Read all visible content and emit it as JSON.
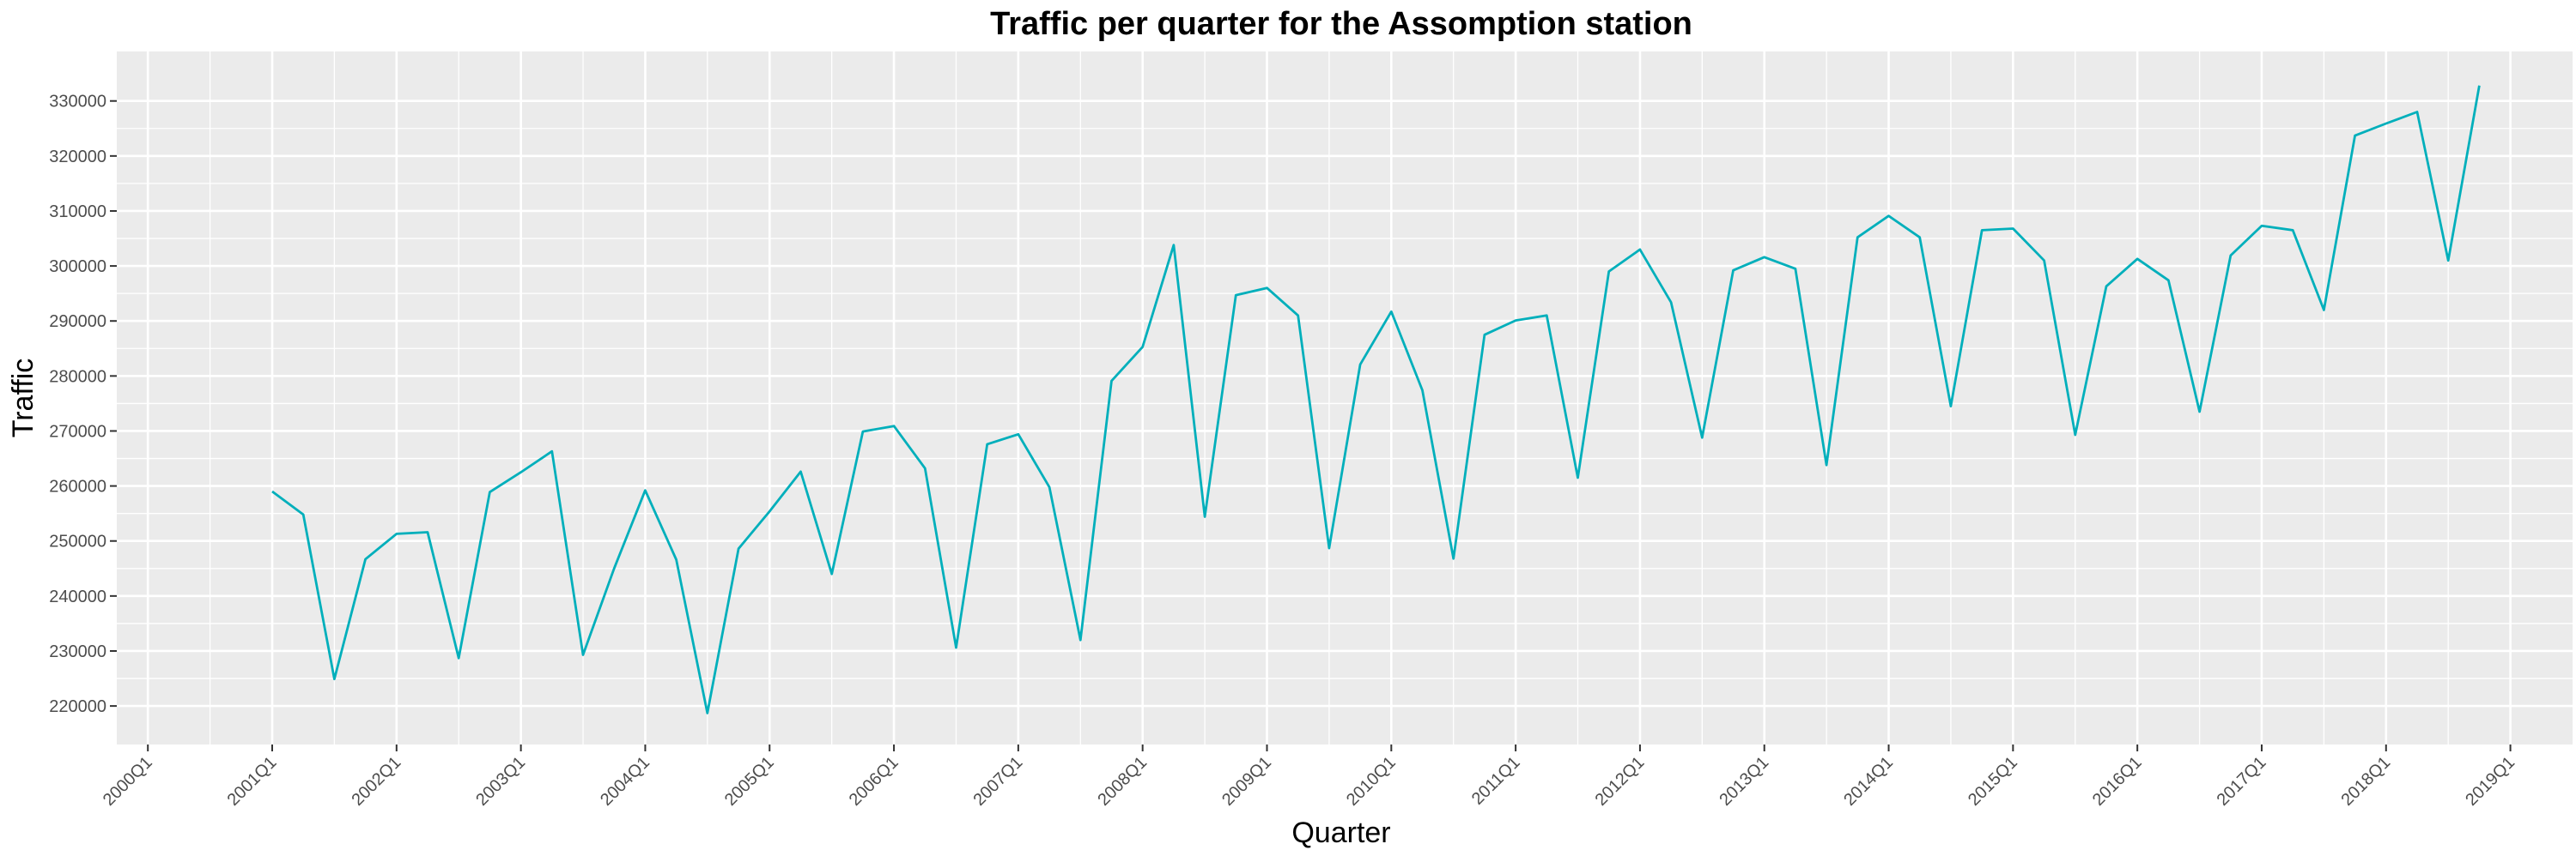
{
  "chart_data": {
    "type": "line",
    "title": "Traffic per quarter for the Assomption station",
    "xlabel": "Quarter",
    "ylabel": "Traffic",
    "x_tick_labels": [
      "2000Q1",
      "2001Q1",
      "2002Q1",
      "2003Q1",
      "2004Q1",
      "2005Q1",
      "2006Q1",
      "2007Q1",
      "2008Q1",
      "2009Q1",
      "2010Q1",
      "2011Q1",
      "2012Q1",
      "2013Q1",
      "2014Q1",
      "2015Q1",
      "2016Q1",
      "2017Q1",
      "2018Q1",
      "2019Q1"
    ],
    "y_tick_labels": [
      "220000",
      "230000",
      "240000",
      "250000",
      "260000",
      "270000",
      "280000",
      "290000",
      "300000",
      "310000",
      "320000",
      "330000"
    ],
    "y_ticks": [
      220000,
      230000,
      240000,
      250000,
      260000,
      270000,
      280000,
      290000,
      300000,
      310000,
      320000,
      330000
    ],
    "xlim": [
      "1999Q4",
      "2019Q3"
    ],
    "ylim": [
      213000,
      339000
    ],
    "grid": true,
    "colors": {
      "series": "#00AFBB",
      "panel": "#EBEBEB",
      "grid": "#FFFFFF"
    },
    "series": [
      {
        "x": [
          "2001Q1",
          "2001Q2",
          "2001Q3",
          "2001Q4",
          "2002Q1",
          "2002Q2",
          "2002Q3",
          "2002Q4",
          "2003Q1",
          "2003Q2",
          "2003Q3",
          "2003Q4",
          "2004Q1",
          "2004Q2",
          "2004Q3",
          "2004Q4",
          "2005Q1",
          "2005Q2",
          "2005Q3",
          "2005Q4",
          "2006Q1",
          "2006Q2",
          "2006Q3",
          "2006Q4",
          "2007Q1",
          "2007Q2",
          "2007Q3",
          "2007Q4",
          "2008Q1",
          "2008Q2",
          "2008Q3",
          "2008Q4",
          "2009Q1",
          "2009Q2",
          "2009Q3",
          "2009Q4",
          "2010Q1",
          "2010Q2",
          "2010Q3",
          "2010Q4",
          "2011Q1",
          "2011Q2",
          "2011Q3",
          "2011Q4",
          "2012Q1",
          "2012Q2",
          "2012Q3",
          "2012Q4",
          "2013Q1",
          "2013Q2",
          "2013Q3",
          "2013Q4",
          "2014Q1",
          "2014Q2",
          "2014Q3",
          "2014Q4",
          "2015Q1",
          "2015Q2",
          "2015Q3",
          "2015Q4",
          "2016Q1",
          "2016Q2",
          "2016Q3",
          "2016Q4",
          "2017Q1",
          "2017Q2",
          "2017Q3",
          "2017Q4",
          "2018Q1",
          "2018Q2",
          "2018Q3",
          "2018Q4"
        ],
        "values": [
          259000,
          254800,
          224900,
          246700,
          251300,
          251600,
          228700,
          258900,
          262500,
          266300,
          229300,
          245000,
          259200,
          246600,
          218700,
          248600,
          255400,
          262600,
          244000,
          269900,
          270900,
          263200,
          230600,
          267600,
          269400,
          259800,
          232000,
          279100,
          285300,
          303800,
          254400,
          294700,
          296000,
          291000,
          248700,
          282100,
          291700,
          277400,
          246800,
          287500,
          290100,
          291000,
          261500,
          299000,
          303000,
          293400,
          268800,
          299200,
          301600,
          299500,
          263800,
          305200,
          309100,
          305200,
          274500,
          306500,
          306800,
          301000,
          269300,
          296300,
          301300,
          297400,
          273500,
          301900,
          307300,
          306500,
          292000,
          323700,
          325900,
          328000,
          301000,
          332800
        ]
      }
    ]
  }
}
